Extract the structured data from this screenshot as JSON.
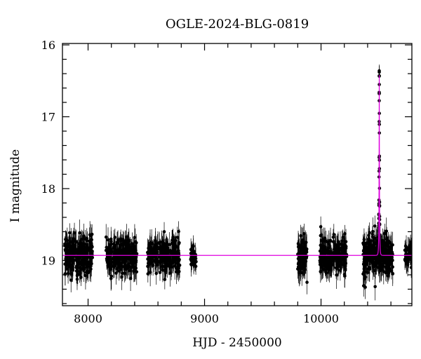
{
  "chart_data": {
    "type": "scatter",
    "title": "OGLE-2024-BLG-0819",
    "xlabel": "HJD - 2450000",
    "ylabel": "I magnitude",
    "xlim": [
      7780,
      10780
    ],
    "ylim": [
      19.63,
      15.98
    ],
    "y_inverted": true,
    "x_ticks": [
      8000,
      9000,
      10000
    ],
    "y_ticks": [
      16,
      17,
      18,
      19
    ],
    "model_color": "#e000e0",
    "point_color": "#000000",
    "baseline_mag": 18.93,
    "seasons": [
      {
        "start": 7800,
        "end": 8040,
        "mean": 18.93,
        "scatter": 0.13,
        "err": 0.15,
        "n": 260
      },
      {
        "start": 8150,
        "end": 8420,
        "mean": 18.93,
        "scatter": 0.12,
        "err": 0.15,
        "n": 260
      },
      {
        "start": 8510,
        "end": 8790,
        "mean": 18.93,
        "scatter": 0.12,
        "err": 0.15,
        "n": 240
      },
      {
        "start": 8880,
        "end": 8930,
        "mean": 18.93,
        "scatter": 0.1,
        "err": 0.13,
        "n": 40
      },
      {
        "start": 9800,
        "end": 9880,
        "mean": 18.97,
        "scatter": 0.14,
        "err": 0.16,
        "n": 80
      },
      {
        "start": 9990,
        "end": 10220,
        "mean": 18.93,
        "scatter": 0.12,
        "err": 0.15,
        "n": 220
      },
      {
        "start": 10360,
        "end": 10620,
        "mean": 18.93,
        "scatter": 0.13,
        "err": 0.15,
        "n": 300
      },
      {
        "start": 10720,
        "end": 10780,
        "mean": 18.93,
        "scatter": 0.1,
        "err": 0.13,
        "n": 50
      }
    ],
    "peak": {
      "t0": 10500,
      "peak_mag": 16.42,
      "tE": 4.5
    }
  }
}
